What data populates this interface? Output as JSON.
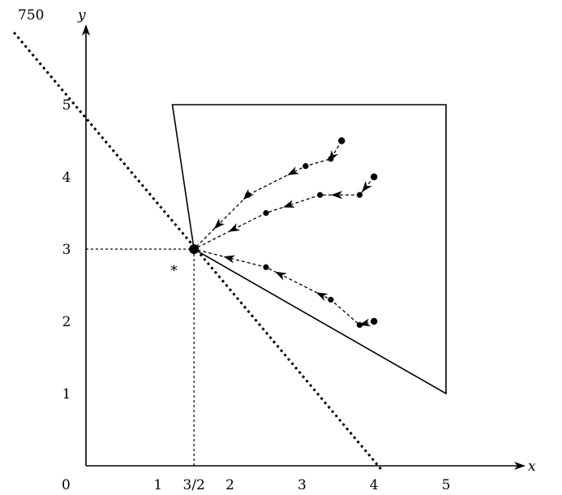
{
  "corner_label": "750",
  "axes": {
    "x_name": "x",
    "y_name": "y",
    "origin_label": "0",
    "x_ticks": [
      {
        "value": 1,
        "label": "1"
      },
      {
        "value": 1.5,
        "label": "3/2"
      },
      {
        "value": 2,
        "label": "2"
      },
      {
        "value": 3,
        "label": "3"
      },
      {
        "value": 4,
        "label": "4"
      },
      {
        "value": 5,
        "label": "5"
      }
    ],
    "y_ticks": [
      {
        "value": 1,
        "label": "1"
      },
      {
        "value": 2,
        "label": "2"
      },
      {
        "value": 3,
        "label": "3"
      },
      {
        "value": 4,
        "label": "4"
      },
      {
        "value": 5,
        "label": "5"
      }
    ]
  },
  "equilibrium": {
    "x": 1.5,
    "y": 3,
    "label": "*"
  },
  "region": [
    [
      1.2,
      5
    ],
    [
      5,
      5
    ],
    [
      5,
      1
    ],
    [
      1.5,
      3
    ]
  ],
  "dotted_line": {
    "from": [
      -1.0,
      6.0
    ],
    "to": [
      4.1,
      -0.05
    ]
  },
  "trajectories": [
    {
      "points": [
        [
          3.55,
          4.5
        ],
        [
          3.4,
          4.25
        ],
        [
          3.05,
          4.15
        ],
        [
          2.25,
          3.75
        ],
        [
          1.5,
          3
        ]
      ],
      "arrows": [
        0.1,
        0.33,
        0.6,
        0.82
      ]
    },
    {
      "points": [
        [
          4.0,
          4.0
        ],
        [
          3.8,
          3.75
        ],
        [
          3.25,
          3.75
        ],
        [
          2.5,
          3.5
        ],
        [
          1.5,
          3
        ]
      ],
      "arrows": [
        0.07,
        0.23,
        0.48,
        0.78
      ]
    },
    {
      "points": [
        [
          4.0,
          2.0
        ],
        [
          3.8,
          1.95
        ],
        [
          3.4,
          2.3
        ],
        [
          2.5,
          2.75
        ],
        [
          1.5,
          3
        ]
      ],
      "arrows": [
        0.05,
        0.32,
        0.55,
        0.82
      ]
    }
  ]
}
